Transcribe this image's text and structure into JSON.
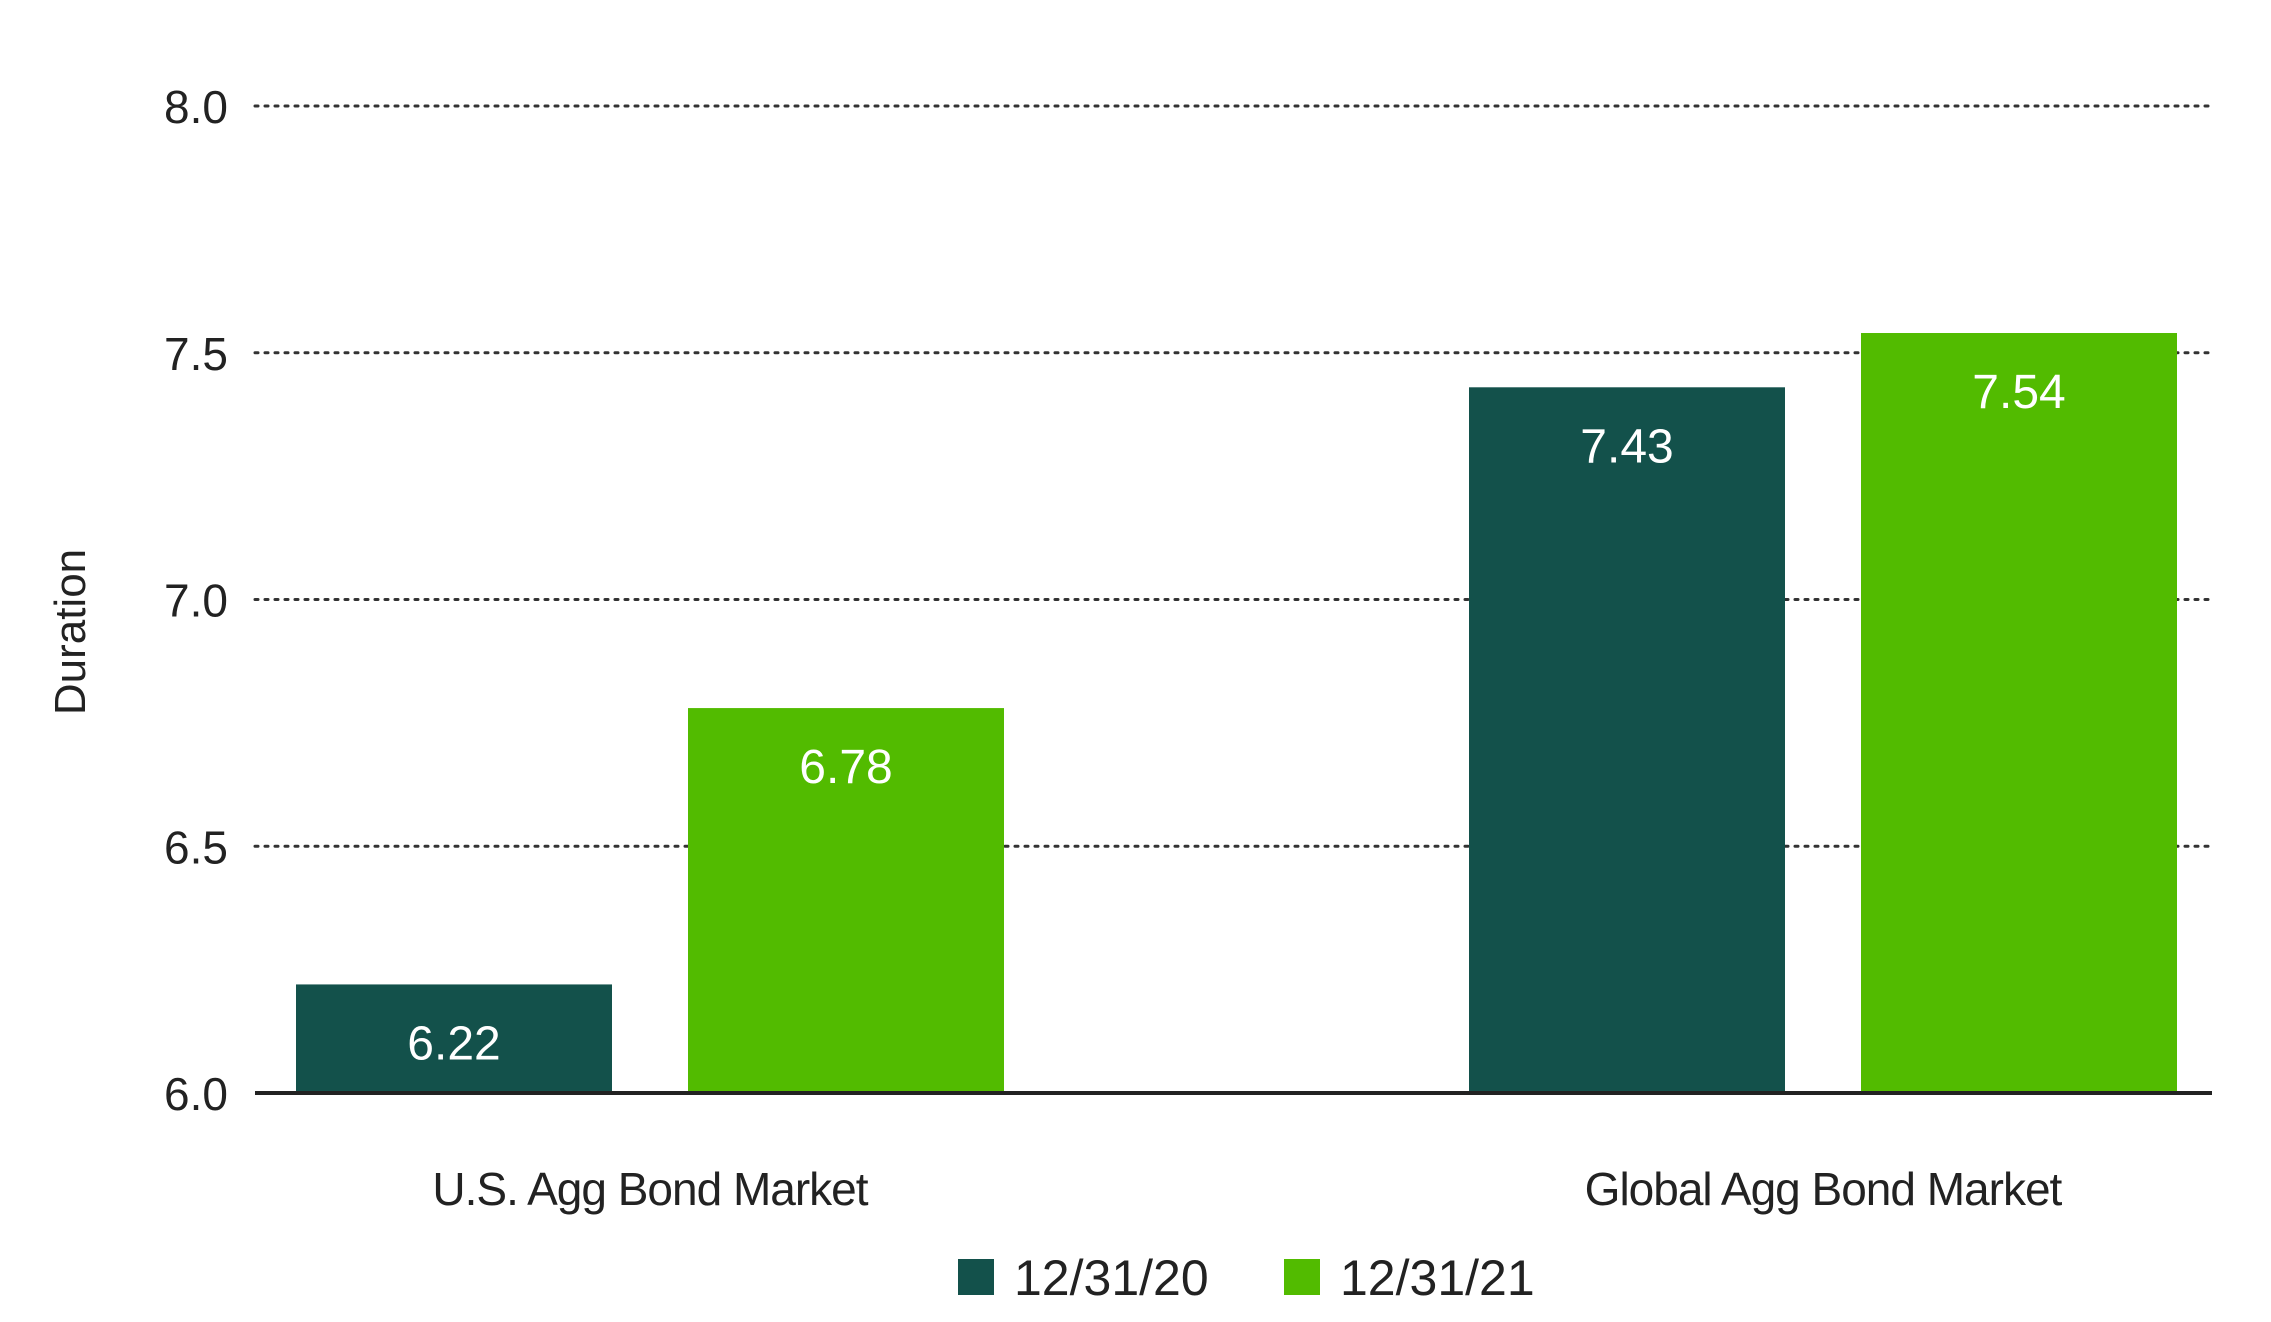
{
  "chart_data": {
    "type": "bar",
    "title": "",
    "xlabel": "",
    "ylabel": "Duration",
    "categories": [
      "U.S. Agg Bond Market",
      "Global Agg Bond Market"
    ],
    "series": [
      {
        "name": "12/31/20",
        "values": [
          6.22,
          7.43
        ],
        "labels": [
          "6.22",
          "7.43"
        ],
        "color": "#13514b"
      },
      {
        "name": "12/31/21",
        "values": [
          6.78,
          7.54
        ],
        "labels": [
          "6.78",
          "7.54"
        ],
        "color": "#52bb00"
      }
    ],
    "ylim": [
      6.0,
      8.0
    ],
    "yticks": [
      6.0,
      6.5,
      7.0,
      7.5,
      8.0
    ],
    "ytick_labels": [
      "6.0",
      "6.5",
      "7.0",
      "7.5",
      "8.0"
    ],
    "grid": "dotted horizontal",
    "legend_position": "bottom"
  }
}
